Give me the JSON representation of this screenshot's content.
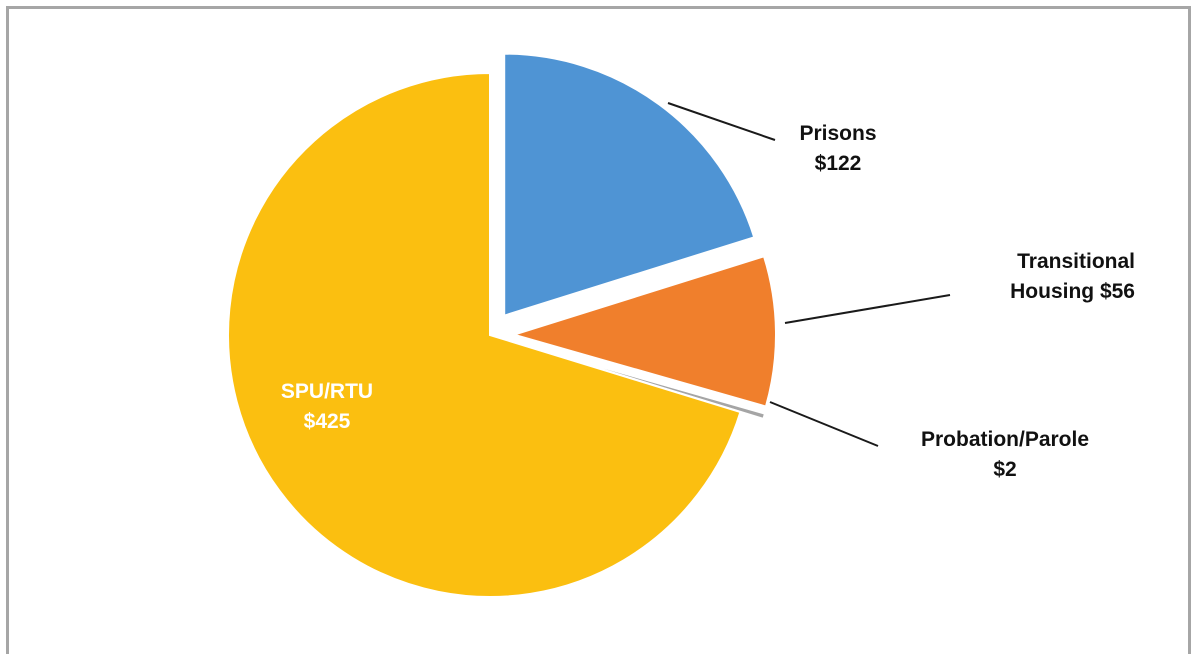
{
  "chart_data": {
    "type": "pie",
    "slices": [
      {
        "label_lines": [
          "Prisons",
          "$122"
        ],
        "value": 122,
        "color": "#4f94d4",
        "exploded": true
      },
      {
        "label_lines": [
          "Transitional",
          "Housing $56"
        ],
        "value": 56,
        "color": "#f07f2c",
        "exploded": true
      },
      {
        "label_lines": [
          "Probation/Parole",
          "$2"
        ],
        "value": 2,
        "color": "#a5a5a5",
        "exploded": true
      },
      {
        "label_lines": [
          "SPU/RTU",
          "$425"
        ],
        "value": 425,
        "color": "#fbbf10",
        "exploded": false
      }
    ],
    "title": "",
    "legend": "none"
  }
}
